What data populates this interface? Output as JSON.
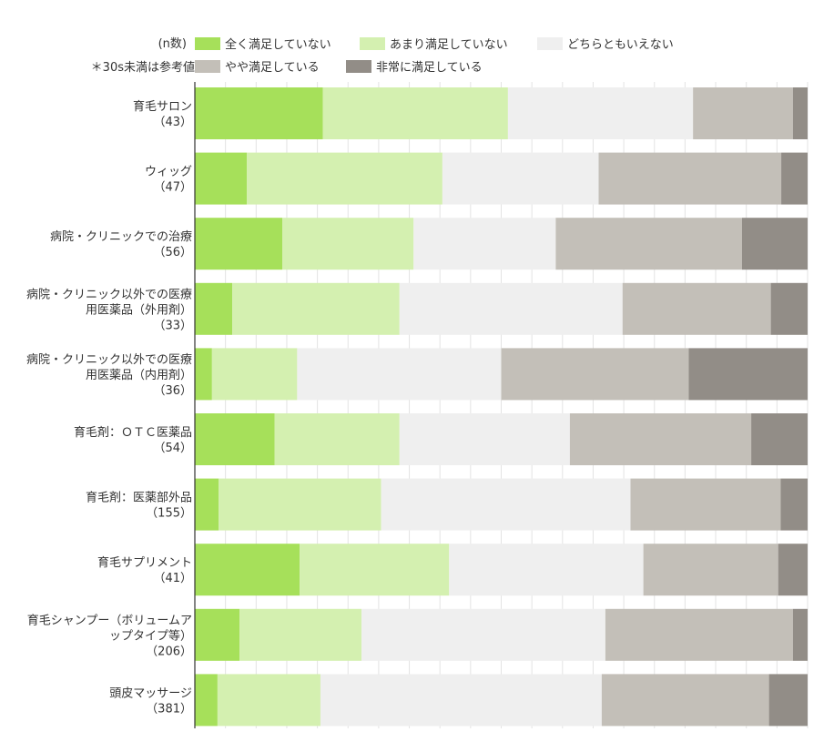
{
  "legend": {
    "n_label": "(n数)",
    "note": "＊30s未満は参考値",
    "items": [
      {
        "label": "全く満足していない",
        "color": "#a6e05a"
      },
      {
        "label": "あまり満足していない",
        "color": "#d4f0b0"
      },
      {
        "label": "どちらともいえない",
        "color": "#efefef"
      },
      {
        "label": "やや満足している",
        "color": "#c3bfb8"
      },
      {
        "label": "非常に満足している",
        "color": "#928d87"
      }
    ]
  },
  "chart_data": {
    "type": "bar",
    "orientation": "horizontal",
    "stacked": true,
    "percent": true,
    "xlim": [
      0,
      100
    ],
    "grid": true,
    "legend_position": "top",
    "categories": [
      {
        "lines": [
          "育毛サロン",
          "（43）"
        ]
      },
      {
        "lines": [
          "ウィッグ",
          "（47）"
        ]
      },
      {
        "lines": [
          "病院・クリニックでの治療",
          "（56）"
        ]
      },
      {
        "lines": [
          "病院・クリニック以外での医療",
          "用医薬品（外用剤）",
          "（33）"
        ]
      },
      {
        "lines": [
          "病院・クリニック以外での医療",
          "用医薬品（内用剤）",
          "（36）"
        ]
      },
      {
        "lines": [
          "育毛剤：ＯＴＣ医薬品",
          "（54）"
        ]
      },
      {
        "lines": [
          "育毛剤：医薬部外品",
          "（155）"
        ]
      },
      {
        "lines": [
          "育毛サプリメント",
          "（41）"
        ]
      },
      {
        "lines": [
          "育毛シャンプー（ボリュームア",
          "ップタイプ等）",
          "（206）"
        ]
      },
      {
        "lines": [
          "頭皮マッサージ",
          "（381）"
        ]
      }
    ],
    "series": [
      {
        "name": "全く満足していない",
        "color": "#a6e05a",
        "values": [
          20.9,
          8.5,
          14.3,
          6.1,
          2.8,
          13.0,
          3.9,
          17.1,
          7.3,
          3.7
        ]
      },
      {
        "name": "あまり満足していない",
        "color": "#d4f0b0",
        "values": [
          30.2,
          31.9,
          21.4,
          27.3,
          13.9,
          20.4,
          26.5,
          24.4,
          19.9,
          16.8
        ]
      },
      {
        "name": "どちらともいえない",
        "color": "#efefef",
        "values": [
          30.2,
          25.5,
          23.2,
          36.4,
          33.3,
          27.8,
          40.7,
          31.7,
          39.8,
          45.9
        ]
      },
      {
        "name": "やや満足している",
        "color": "#c3bfb8",
        "values": [
          16.3,
          29.8,
          30.4,
          24.2,
          30.6,
          29.6,
          24.5,
          22.0,
          30.6,
          27.3
        ]
      },
      {
        "name": "非常に満足している",
        "color": "#928d87",
        "values": [
          2.4,
          4.3,
          10.7,
          6.0,
          19.4,
          9.2,
          4.4,
          4.8,
          2.4,
          6.3
        ]
      }
    ]
  }
}
